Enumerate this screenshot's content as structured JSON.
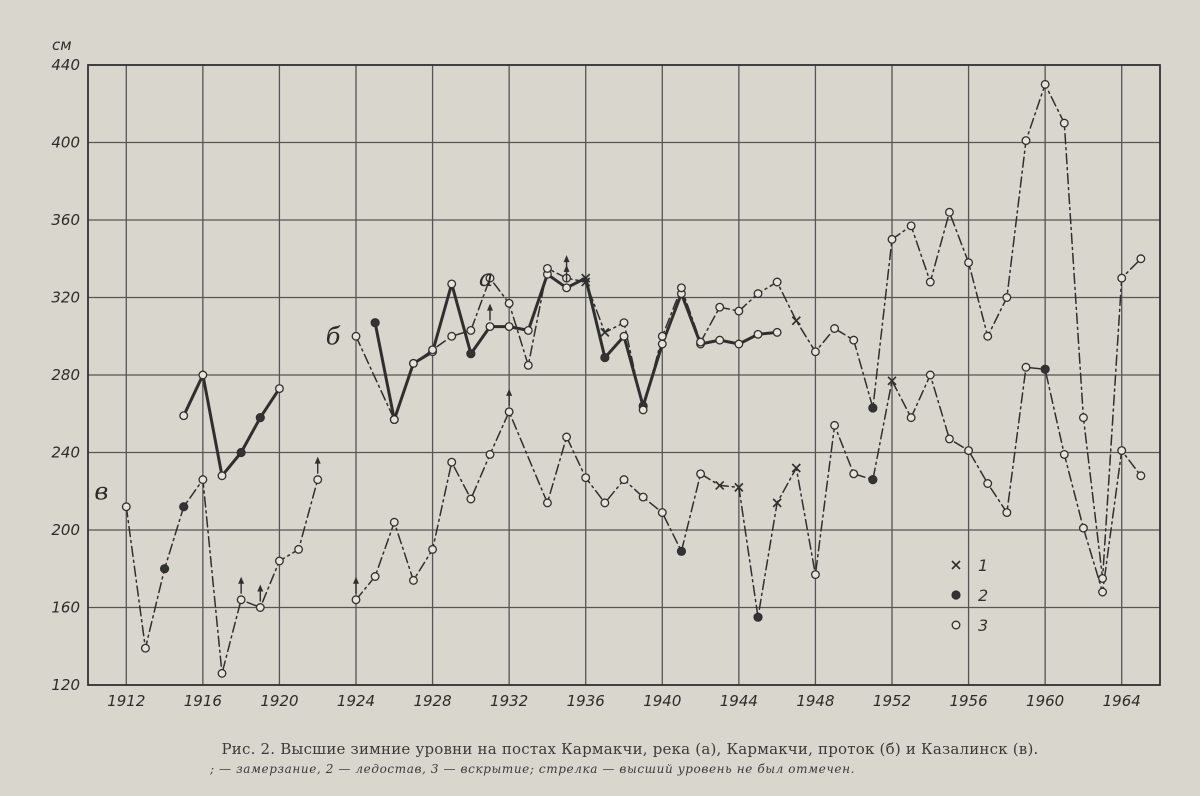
{
  "chart_data": {
    "type": "line",
    "unit_label": "см",
    "x_ticks": [
      "1912",
      "1916",
      "1920",
      "1924",
      "1928",
      "1932",
      "1936",
      "1940",
      "1944",
      "1948",
      "1952",
      "1956",
      "1960",
      "1964"
    ],
    "y_ticks": [
      120,
      160,
      200,
      240,
      280,
      320,
      360,
      400,
      440
    ],
    "xlim": [
      1910,
      1966
    ],
    "ylim": [
      120,
      440
    ],
    "grid": true,
    "legend": {
      "placement": "bottom-right",
      "entries": [
        {
          "marker": "x",
          "label": "1"
        },
        {
          "marker": "filled-circle",
          "label": "2"
        },
        {
          "marker": "open-circle",
          "label": "3"
        }
      ]
    },
    "series": [
      {
        "name": "а",
        "style": "solid",
        "x": [
          1915,
          1916,
          1917,
          1918,
          1919,
          1920
        ],
        "y": [
          259,
          280,
          228,
          240,
          258,
          273
        ],
        "markers": [
          "open-circle",
          "open-circle",
          "open-circle",
          "filled-circle",
          "filled-circle",
          "open-circle"
        ]
      },
      {
        "name": "а",
        "style": "solid",
        "x": [
          1925,
          1926,
          1927,
          1928,
          1929,
          1930,
          1931,
          1932,
          1933,
          1934,
          1935,
          1936,
          1937,
          1938,
          1939,
          1940,
          1941,
          1942,
          1943,
          1944,
          1945,
          1946
        ],
        "y": [
          307,
          257,
          286,
          292,
          327,
          291,
          305,
          305,
          303,
          332,
          325,
          330,
          289,
          300,
          264,
          296,
          322,
          296,
          298,
          296,
          301,
          302
        ],
        "markers": [
          "filled-circle",
          "open-circle",
          "open-circle",
          "open-circle",
          "open-circle",
          "filled-circle",
          "open-circle",
          "open-circle",
          "open-circle",
          "open-circle",
          "open-circle",
          "x",
          "filled-circle",
          "open-circle",
          "filled-circle",
          "open-circle",
          "open-circle",
          "open-circle",
          "open-circle",
          "open-circle",
          "open-circle",
          "open-circle"
        ]
      },
      {
        "name": "б",
        "style": "dash-dot",
        "x": [
          1924,
          1926,
          1927,
          1928,
          1929,
          1930,
          1931,
          1932,
          1933,
          1934,
          1935,
          1936,
          1937,
          1938,
          1939,
          1940,
          1941,
          1942,
          1943,
          1944,
          1945,
          1946,
          1947,
          1948,
          1949,
          1950,
          1951,
          1952,
          1953,
          1954,
          1955,
          1956,
          1957,
          1958,
          1959,
          1960,
          1961,
          1962,
          1963,
          1964,
          1965
        ],
        "y": [
          300,
          257,
          286,
          293,
          300,
          303,
          330,
          317,
          285,
          335,
          330,
          328,
          302,
          307,
          262,
          300,
          325,
          297,
          315,
          313,
          322,
          328,
          308,
          292,
          304,
          298,
          263,
          350,
          357,
          328,
          364,
          338,
          300,
          320,
          401,
          430,
          410,
          258,
          175,
          330,
          340
        ],
        "markers": [
          "open-circle",
          "open-circle",
          "open-circle",
          "open-circle",
          "open-circle",
          "open-circle",
          "open-circle",
          "open-circle",
          "open-circle",
          "open-circle",
          "open-circle",
          "x",
          "x",
          "open-circle",
          "open-circle",
          "open-circle",
          "open-circle",
          "open-circle",
          "open-circle",
          "open-circle",
          "open-circle",
          "open-circle",
          "x",
          "open-circle",
          "open-circle",
          "open-circle",
          "filled-circle",
          "open-circle",
          "open-circle",
          "open-circle",
          "open-circle",
          "open-circle",
          "open-circle",
          "open-circle",
          "open-circle",
          "open-circle",
          "open-circle",
          "open-circle",
          "open-circle",
          "open-circle",
          "open-circle"
        ]
      },
      {
        "name": "в",
        "style": "dash-dot",
        "x": [
          1912,
          1913,
          1914,
          1915,
          1916,
          1917,
          1918,
          1919,
          1920,
          1921,
          1922
        ],
        "y": [
          212,
          139,
          180,
          212,
          226,
          126,
          164,
          160,
          184,
          190,
          226
        ],
        "markers": [
          "open-circle",
          "open-circle",
          "filled-circle",
          "filled-circle",
          "open-circle",
          "open-circle",
          "open-circle",
          "open-circle",
          "open-circle",
          "open-circle",
          "open-circle"
        ]
      },
      {
        "name": "в",
        "style": "dash-dot",
        "x": [
          1924,
          1925,
          1926,
          1927,
          1928,
          1929,
          1930,
          1931,
          1932,
          1934,
          1935,
          1936,
          1937,
          1938,
          1939,
          1940,
          1941,
          1942,
          1943,
          1944,
          1945,
          1946,
          1947,
          1948,
          1949,
          1950,
          1951,
          1952,
          1953,
          1954,
          1955,
          1956,
          1957,
          1958,
          1959,
          1960,
          1961,
          1962,
          1963,
          1964,
          1965
        ],
        "y": [
          164,
          176,
          204,
          174,
          190,
          235,
          216,
          239,
          261,
          214,
          248,
          227,
          214,
          226,
          217,
          209,
          189,
          229,
          223,
          222,
          155,
          214,
          232,
          177,
          254,
          229,
          226,
          277,
          258,
          280,
          247,
          241,
          224,
          209,
          284,
          283,
          239,
          201,
          168,
          241,
          228
        ],
        "markers": [
          "open-circle",
          "open-circle",
          "open-circle",
          "open-circle",
          "open-circle",
          "open-circle",
          "open-circle",
          "open-circle",
          "open-circle",
          "open-circle",
          "open-circle",
          "open-circle",
          "open-circle",
          "open-circle",
          "open-circle",
          "open-circle",
          "filled-circle",
          "open-circle",
          "x",
          "x",
          "filled-circle",
          "x",
          "x",
          "open-circle",
          "open-circle",
          "open-circle",
          "filled-circle",
          "x",
          "open-circle",
          "open-circle",
          "open-circle",
          "open-circle",
          "open-circle",
          "open-circle",
          "open-circle",
          "filled-circle",
          "open-circle",
          "open-circle",
          "open-circle",
          "open-circle",
          "open-circle"
        ]
      }
    ],
    "arrows": [
      {
        "x": 1918,
        "y": 164
      },
      {
        "x": 1919,
        "y": 160
      },
      {
        "x": 1922,
        "y": 226
      },
      {
        "x": 1924,
        "y": 164
      },
      {
        "x": 1931,
        "y": 305
      },
      {
        "x": 1932,
        "y": 261
      },
      {
        "x": 1935,
        "y": 330
      },
      {
        "x": 1935,
        "y": 325
      }
    ],
    "series_tags": [
      {
        "text": "а",
        "x": 1930.8,
        "y": 330
      },
      {
        "text": "б",
        "x": 1922.8,
        "y": 300
      },
      {
        "text": "в",
        "x": 1910.7,
        "y": 220
      }
    ]
  },
  "caption": {
    "line1": "Рис. 2. Высшие зимние уровни на постах Кармакчи, река (а), Кармакчи, проток (б) и Казалинск (в).",
    "line2": "; — замерзание, 2 — ледостав, 3 — вскрытие; стрелка — высший уровень не был отмечен."
  }
}
